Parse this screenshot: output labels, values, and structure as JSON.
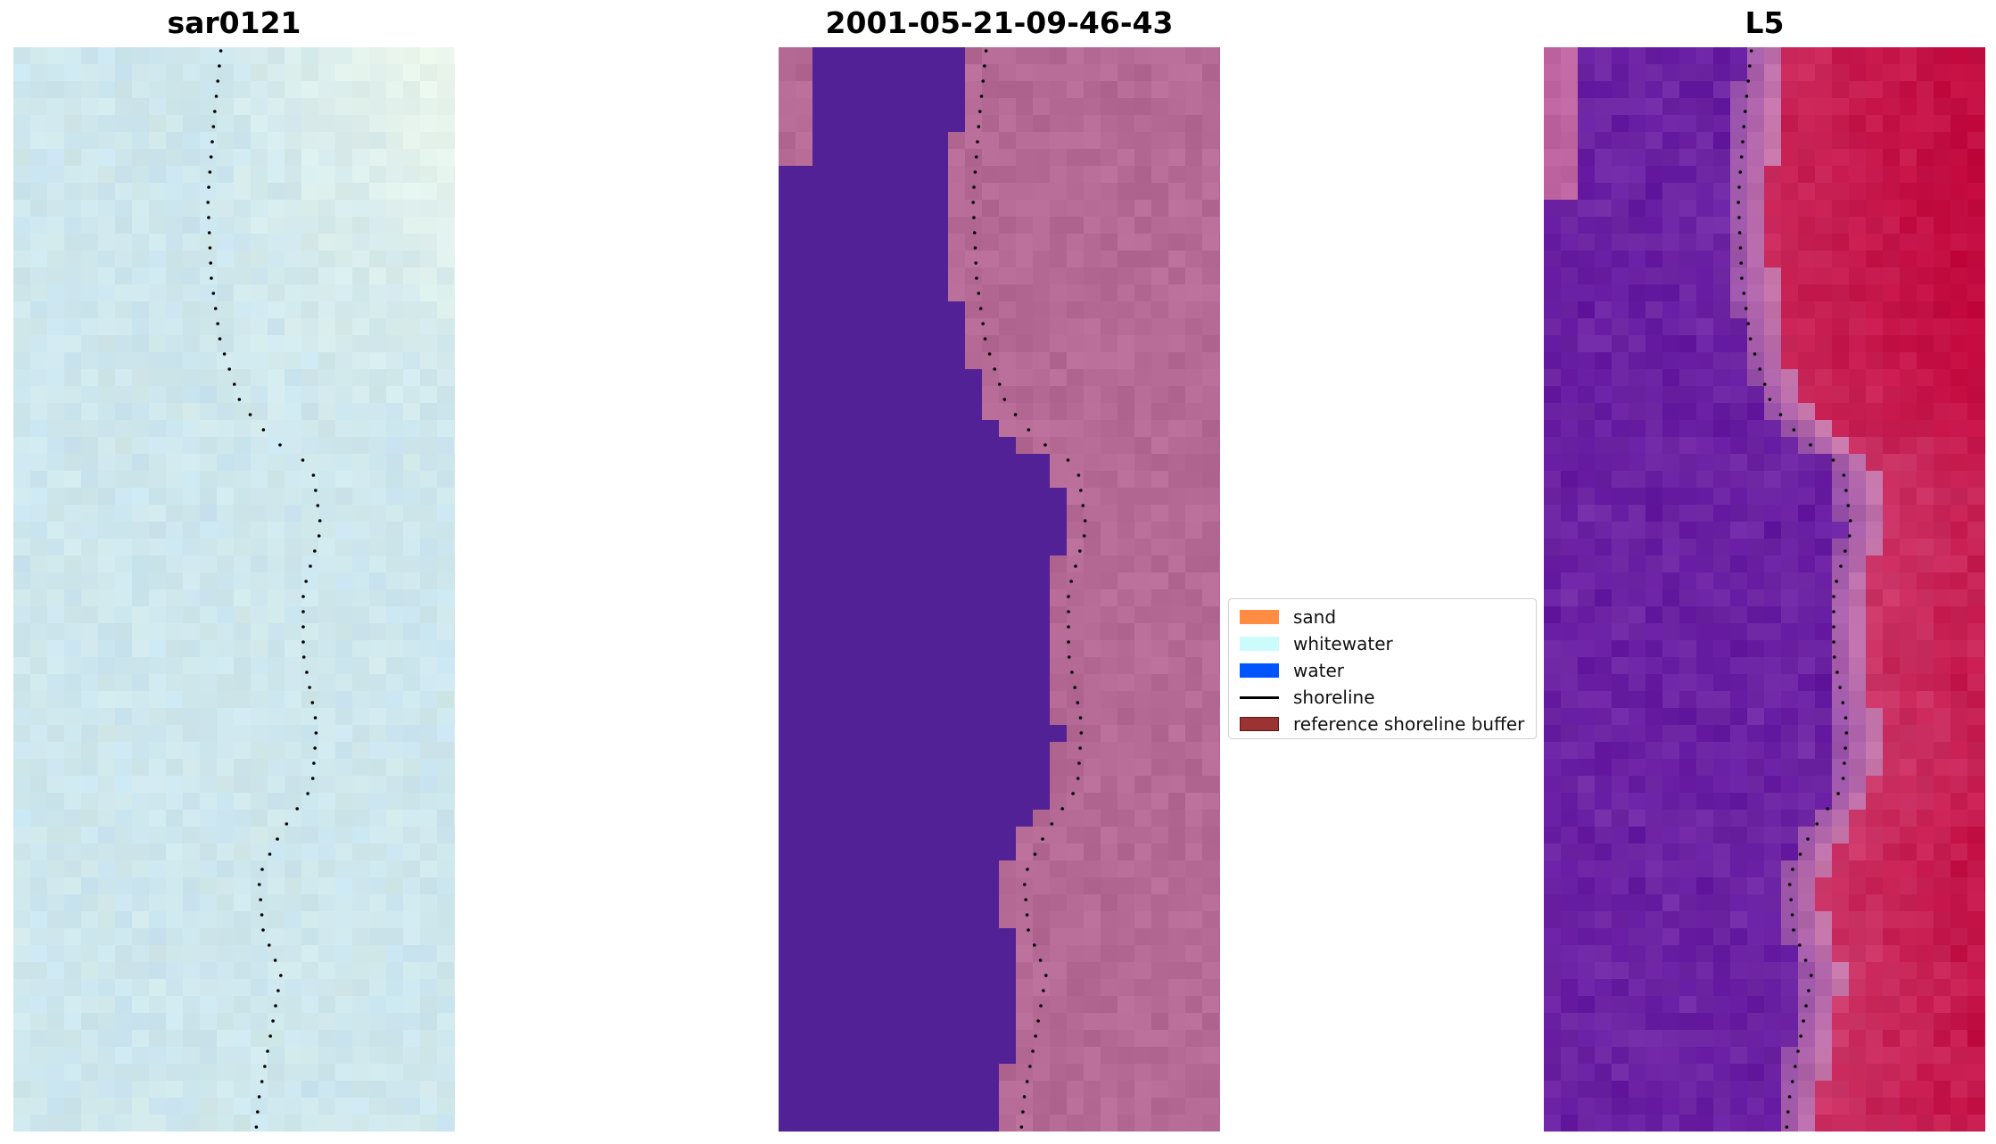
{
  "panels": [
    {
      "title": "sar0121"
    },
    {
      "title": "2001-05-21-09-46-43"
    },
    {
      "title": "L5"
    }
  ],
  "legend": {
    "items": [
      {
        "label": "sand",
        "color": "#ff8c42",
        "kind": "patch"
      },
      {
        "label": "whitewater",
        "color": "#ccfbfb",
        "kind": "patch"
      },
      {
        "label": "water",
        "color": "#0055ff",
        "kind": "patch"
      },
      {
        "label": "shoreline",
        "color": "#000000",
        "kind": "line"
      },
      {
        "label": "reference shoreline buffer",
        "color": "#9c3333",
        "kind": "patch"
      }
    ]
  },
  "colors": {
    "rgb_panel_base": "#cfe6ec",
    "classified_water": "#522196",
    "classified_land": "#b56a96",
    "index_low": "#6318a0",
    "index_high": "#c2073c",
    "shoreline_dots": "#000000"
  }
}
